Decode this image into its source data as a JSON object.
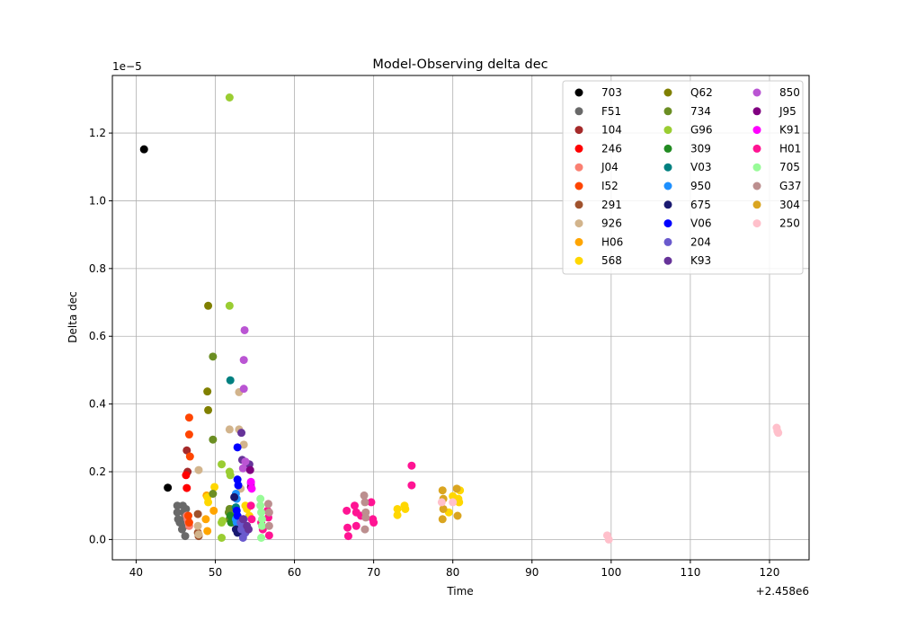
{
  "chart_data": {
    "type": "scatter",
    "title": "Model-Observing delta dec",
    "xlabel": "Time",
    "ylabel": "Delta dec",
    "x_offset_label": "+2.458e6",
    "y_scale_label": "1e−5",
    "xlim": [
      37,
      125
    ],
    "ylim": [
      -0.06,
      1.37
    ],
    "x_ticks": [
      40,
      50,
      60,
      70,
      80,
      90,
      100,
      110,
      120
    ],
    "x_tick_labels": [
      "40",
      "50",
      "60",
      "70",
      "80",
      "90",
      "100",
      "110",
      "120"
    ],
    "y_ticks": [
      0.0,
      0.2,
      0.4,
      0.6,
      0.8,
      1.0,
      1.2
    ],
    "y_tick_labels": [
      "0.0",
      "0.2",
      "0.4",
      "0.6",
      "0.8",
      "1.0",
      "1.2"
    ],
    "grid": true,
    "legend_position": "top-right",
    "legend_columns": 3,
    "series": [
      {
        "name": "703",
        "color": "#000000",
        "points": [
          [
            41.0,
            1.152
          ],
          [
            44.0,
            0.153
          ]
        ]
      },
      {
        "name": "F51",
        "color": "#696969",
        "points": [
          [
            45.2,
            0.1
          ],
          [
            45.2,
            0.08
          ],
          [
            45.3,
            0.06
          ],
          [
            45.5,
            0.05
          ],
          [
            45.9,
            0.1
          ],
          [
            46.0,
            0.08
          ],
          [
            46.0,
            0.06
          ],
          [
            46.1,
            0.04
          ],
          [
            46.2,
            0.01
          ],
          [
            46.3,
            0.09
          ],
          [
            45.8,
            0.03
          ]
        ]
      },
      {
        "name": "104",
        "color": "#a52a2a",
        "points": [
          [
            46.4,
            0.263
          ],
          [
            46.5,
            0.2
          ]
        ]
      },
      {
        "name": "246",
        "color": "#ff0000",
        "points": [
          [
            46.4,
            0.152
          ],
          [
            46.3,
            0.19
          ]
        ]
      },
      {
        "name": "J04",
        "color": "#fa8072",
        "points": [
          [
            46.4,
            0.07
          ],
          [
            46.5,
            0.06
          ],
          [
            46.6,
            0.05
          ],
          [
            46.7,
            0.04
          ]
        ]
      },
      {
        "name": "I52",
        "color": "#ff4500",
        "points": [
          [
            46.7,
            0.36
          ],
          [
            46.7,
            0.31
          ],
          [
            46.8,
            0.245
          ],
          [
            46.6,
            0.07
          ],
          [
            46.7,
            0.05
          ]
        ]
      },
      {
        "name": "291",
        "color": "#a0522d",
        "points": [
          [
            47.8,
            0.075
          ],
          [
            47.8,
            0.02
          ],
          [
            47.9,
            0.01
          ]
        ]
      },
      {
        "name": "926",
        "color": "#d2b48c",
        "points": [
          [
            47.9,
            0.205
          ],
          [
            47.8,
            0.04
          ],
          [
            47.9,
            0.015
          ],
          [
            53.0,
            0.435
          ],
          [
            51.8,
            0.325
          ],
          [
            53.0,
            0.325
          ],
          [
            53.6,
            0.28
          ],
          [
            53.2,
            0.15
          ],
          [
            52.6,
            0.06
          ]
        ]
      },
      {
        "name": "H06",
        "color": "#ffa500",
        "points": [
          [
            48.8,
            0.06
          ],
          [
            49.0,
            0.025
          ],
          [
            48.9,
            0.13
          ],
          [
            49.8,
            0.085
          ]
        ]
      },
      {
        "name": "568",
        "color": "#ffd700",
        "points": [
          [
            49.0,
            0.125
          ],
          [
            49.1,
            0.11
          ],
          [
            49.9,
            0.155
          ],
          [
            52.0,
            0.09
          ],
          [
            53.8,
            0.1
          ],
          [
            54.0,
            0.09
          ],
          [
            54.3,
            0.07
          ],
          [
            73.0,
            0.09
          ],
          [
            73.0,
            0.072
          ],
          [
            73.9,
            0.1
          ],
          [
            74.0,
            0.09
          ],
          [
            80.0,
            0.128
          ],
          [
            80.7,
            0.12
          ],
          [
            80.8,
            0.11
          ],
          [
            80.9,
            0.145
          ],
          [
            79.5,
            0.08
          ]
        ]
      },
      {
        "name": "Q62",
        "color": "#808000",
        "points": [
          [
            49.1,
            0.69
          ],
          [
            49.0,
            0.437
          ],
          [
            49.1,
            0.382
          ],
          [
            52.0,
            0.07
          ]
        ]
      },
      {
        "name": "734",
        "color": "#6b8e23",
        "points": [
          [
            49.7,
            0.54
          ],
          [
            49.7,
            0.295
          ],
          [
            49.7,
            0.135
          ],
          [
            51.8,
            0.09
          ],
          [
            51.8,
            0.06
          ],
          [
            51.7,
            0.08
          ]
        ]
      },
      {
        "name": "G96",
        "color": "#9acd32",
        "points": [
          [
            51.8,
            1.305
          ],
          [
            51.8,
            0.69
          ],
          [
            50.8,
            0.222
          ],
          [
            51.8,
            0.2
          ],
          [
            51.9,
            0.19
          ],
          [
            50.8,
            0.05
          ],
          [
            50.9,
            0.055
          ],
          [
            50.8,
            0.005
          ],
          [
            52.3,
            0.07
          ]
        ]
      },
      {
        "name": "309",
        "color": "#228b22",
        "points": [
          [
            51.9,
            0.07
          ],
          [
            52.0,
            0.05
          ]
        ]
      },
      {
        "name": "V03",
        "color": "#008080",
        "points": [
          [
            51.9,
            0.47
          ],
          [
            52.6,
            0.095
          ]
        ]
      },
      {
        "name": "950",
        "color": "#1e90ff",
        "points": [
          [
            52.6,
            0.135
          ],
          [
            52.7,
            0.12
          ],
          [
            52.6,
            0.06
          ],
          [
            52.7,
            0.05
          ]
        ]
      },
      {
        "name": "675",
        "color": "#191970",
        "points": [
          [
            52.4,
            0.125
          ],
          [
            52.6,
            0.03
          ],
          [
            52.8,
            0.02
          ],
          [
            53.2,
            0.02
          ],
          [
            53.5,
            0.03
          ]
        ]
      },
      {
        "name": "V06",
        "color": "#0000ff",
        "points": [
          [
            52.8,
            0.272
          ],
          [
            52.8,
            0.177
          ],
          [
            52.9,
            0.16
          ],
          [
            52.7,
            0.085
          ],
          [
            52.8,
            0.07
          ]
        ]
      },
      {
        "name": "204",
        "color": "#6a5acd",
        "points": [
          [
            53.2,
            0.05
          ],
          [
            53.3,
            0.03
          ],
          [
            53.5,
            0.005
          ],
          [
            53.8,
            0.02
          ],
          [
            53.6,
            0.06
          ]
        ]
      },
      {
        "name": "K93",
        "color": "#663399",
        "points": [
          [
            53.3,
            0.315
          ],
          [
            53.4,
            0.235
          ],
          [
            54.3,
            0.222
          ],
          [
            53.5,
            0.06
          ],
          [
            54.0,
            0.04
          ],
          [
            54.2,
            0.03
          ]
        ]
      },
      {
        "name": "850",
        "color": "#ba55d3",
        "points": [
          [
            53.7,
            0.618
          ],
          [
            53.6,
            0.53
          ],
          [
            53.6,
            0.445
          ],
          [
            53.8,
            0.23
          ],
          [
            53.5,
            0.21
          ],
          [
            54.5,
            0.165
          ]
        ]
      },
      {
        "name": "J95",
        "color": "#800080",
        "points": [
          [
            54.4,
            0.205
          ],
          [
            54.5,
            0.155
          ]
        ]
      },
      {
        "name": "K91",
        "color": "#ff00ff",
        "points": [
          [
            54.5,
            0.17
          ],
          [
            54.6,
            0.15
          ]
        ]
      },
      {
        "name": "H01",
        "color": "#ff1493",
        "points": [
          [
            54.5,
            0.1
          ],
          [
            54.6,
            0.06
          ],
          [
            55.8,
            0.05
          ],
          [
            56.0,
            0.03
          ],
          [
            56.6,
            0.085
          ],
          [
            56.7,
            0.065
          ],
          [
            56.8,
            0.012
          ],
          [
            66.6,
            0.085
          ],
          [
            66.7,
            0.035
          ],
          [
            66.8,
            0.01
          ],
          [
            67.6,
            0.1
          ],
          [
            67.8,
            0.08
          ],
          [
            67.8,
            0.04
          ],
          [
            68.4,
            0.07
          ],
          [
            69.7,
            0.11
          ],
          [
            69.9,
            0.06
          ],
          [
            70.0,
            0.05
          ],
          [
            74.8,
            0.218
          ],
          [
            74.8,
            0.16
          ]
        ]
      },
      {
        "name": "705",
        "color": "#98fb98",
        "points": [
          [
            55.7,
            0.12
          ],
          [
            55.7,
            0.1
          ],
          [
            55.8,
            0.08
          ],
          [
            55.9,
            0.06
          ],
          [
            55.9,
            0.04
          ],
          [
            55.8,
            0.005
          ]
        ]
      },
      {
        "name": "G37",
        "color": "#bc8f8f",
        "points": [
          [
            56.7,
            0.105
          ],
          [
            56.8,
            0.08
          ],
          [
            56.8,
            0.04
          ],
          [
            68.8,
            0.13
          ],
          [
            68.9,
            0.11
          ],
          [
            69.0,
            0.08
          ],
          [
            69.0,
            0.065
          ],
          [
            68.9,
            0.03
          ]
        ]
      },
      {
        "name": "304",
        "color": "#daa520",
        "points": [
          [
            78.7,
            0.145
          ],
          [
            78.8,
            0.12
          ],
          [
            78.8,
            0.09
          ],
          [
            78.7,
            0.06
          ],
          [
            80.5,
            0.15
          ],
          [
            80.6,
            0.07
          ]
        ]
      },
      {
        "name": "250",
        "color": "#ffc0cb",
        "points": [
          [
            78.6,
            0.11
          ],
          [
            80.0,
            0.11
          ],
          [
            99.5,
            0.012
          ],
          [
            99.7,
            0.0
          ],
          [
            120.9,
            0.33
          ],
          [
            121.0,
            0.32
          ],
          [
            121.1,
            0.315
          ]
        ]
      }
    ]
  }
}
